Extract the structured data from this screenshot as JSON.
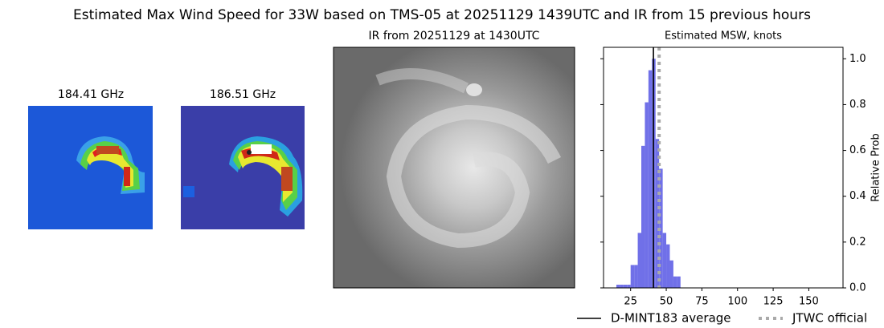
{
  "title": "Estimated Max Wind Speed for 33W based on TMS-05 at 20251129 1439UTC and IR from 15 previous hours",
  "panels": [
    {
      "title": "184.41 GHz"
    },
    {
      "title": "186.51 GHz"
    },
    {
      "title": "IR from 20251129 at 1430UTC"
    }
  ],
  "chart_data": {
    "type": "histogram",
    "title": "Estimated MSW, knots",
    "y_label": "Relative Prob",
    "bins": [
      15,
      17.5,
      20,
      22.5,
      25,
      27.5,
      30,
      32.5,
      35,
      37.5,
      40,
      42.5,
      45,
      47.5,
      50,
      52.5,
      55,
      57.5,
      60
    ],
    "values": [
      0.014,
      0.014,
      0.014,
      0.014,
      0.1,
      0.1,
      0.24,
      0.62,
      0.81,
      0.95,
      1.0,
      0.65,
      0.52,
      0.24,
      0.19,
      0.12,
      0.05,
      0.05
    ],
    "color": "#7070e8",
    "xlim": [
      6,
      174
    ],
    "ylim": [
      0,
      1.05
    ],
    "xticks": [
      25,
      50,
      75,
      100,
      125,
      150
    ],
    "yticks": [
      {
        "value": 0,
        "label": "0.0"
      },
      0.2,
      0.4,
      0.6,
      0.8,
      {
        "value": 1,
        "label": "1.0"
      }
    ],
    "lines": [
      {
        "name": "D-MINT183 average",
        "value": 41,
        "color": "#000000",
        "style": "solid"
      },
      {
        "name": "JTWC official",
        "value": 45,
        "color": "#aaaaaa",
        "style": "dotted"
      }
    ]
  }
}
